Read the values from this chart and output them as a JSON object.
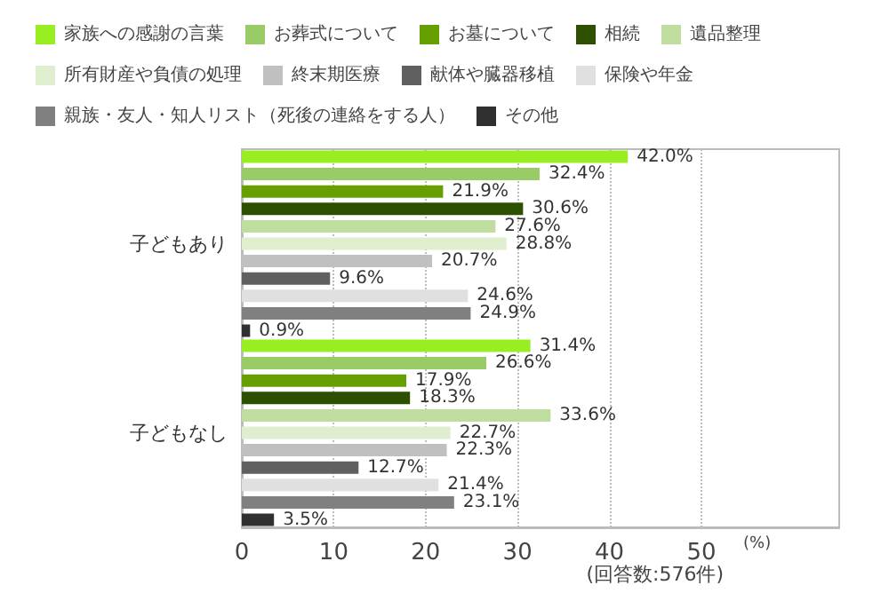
{
  "chart_data": {
    "type": "bar",
    "orientation": "horizontal",
    "categories": [
      "子どもあり",
      "子どもなし"
    ],
    "series": [
      {
        "name": "家族への感謝の言葉",
        "color": "#99ee22",
        "values": [
          42.0,
          31.4
        ],
        "value_labels": [
          "42.0%",
          "31.4%"
        ]
      },
      {
        "name": "お葬式について",
        "color": "#99cc66",
        "values": [
          32.4,
          26.6
        ],
        "value_labels": [
          "32.4%",
          "26.6%"
        ]
      },
      {
        "name": "お墓について",
        "color": "#66a000",
        "values": [
          21.9,
          17.9
        ],
        "value_labels": [
          "21.9%",
          "17.9%"
        ]
      },
      {
        "name": "相続",
        "color": "#2d5000",
        "values": [
          30.6,
          18.3
        ],
        "value_labels": [
          "30.6%",
          "18.3%"
        ]
      },
      {
        "name": "遺品整理",
        "color": "#c0dda0",
        "values": [
          27.6,
          33.6
        ],
        "value_labels": [
          "27.6%",
          "33.6%"
        ]
      },
      {
        "name": "所有財産や負債の処理",
        "color": "#e0eed0",
        "values": [
          28.8,
          22.7
        ],
        "value_labels": [
          "28.8%",
          "22.7%"
        ]
      },
      {
        "name": "終末期医療",
        "color": "#c0c0c0",
        "values": [
          20.7,
          22.3
        ],
        "value_labels": [
          "20.7%",
          "22.3%"
        ]
      },
      {
        "name": "献体や臓器移植",
        "color": "#606060",
        "values": [
          9.6,
          12.7
        ],
        "value_labels": [
          "9.6%",
          "12.7%"
        ]
      },
      {
        "name": "保険や年金",
        "color": "#e0e0e0",
        "values": [
          24.6,
          21.4
        ],
        "value_labels": [
          "24.6%",
          "21.4%"
        ]
      },
      {
        "name": "親族・友人・知人リスト（死後の連絡をする人）",
        "color": "#808080",
        "values": [
          24.9,
          23.1
        ],
        "value_labels": [
          "24.9%",
          "23.1%"
        ]
      },
      {
        "name": "その他",
        "color": "#303030",
        "values": [
          0.9,
          3.5
        ],
        "value_labels": [
          "0.9%",
          "3.5%"
        ]
      }
    ],
    "xlim": [
      0,
      65
    ],
    "xticks": [
      0,
      10,
      20,
      30,
      40,
      50
    ],
    "xlabel": "(%)",
    "annotations": [
      "(回答数:576件)"
    ],
    "grid": "x",
    "legend": "top"
  }
}
